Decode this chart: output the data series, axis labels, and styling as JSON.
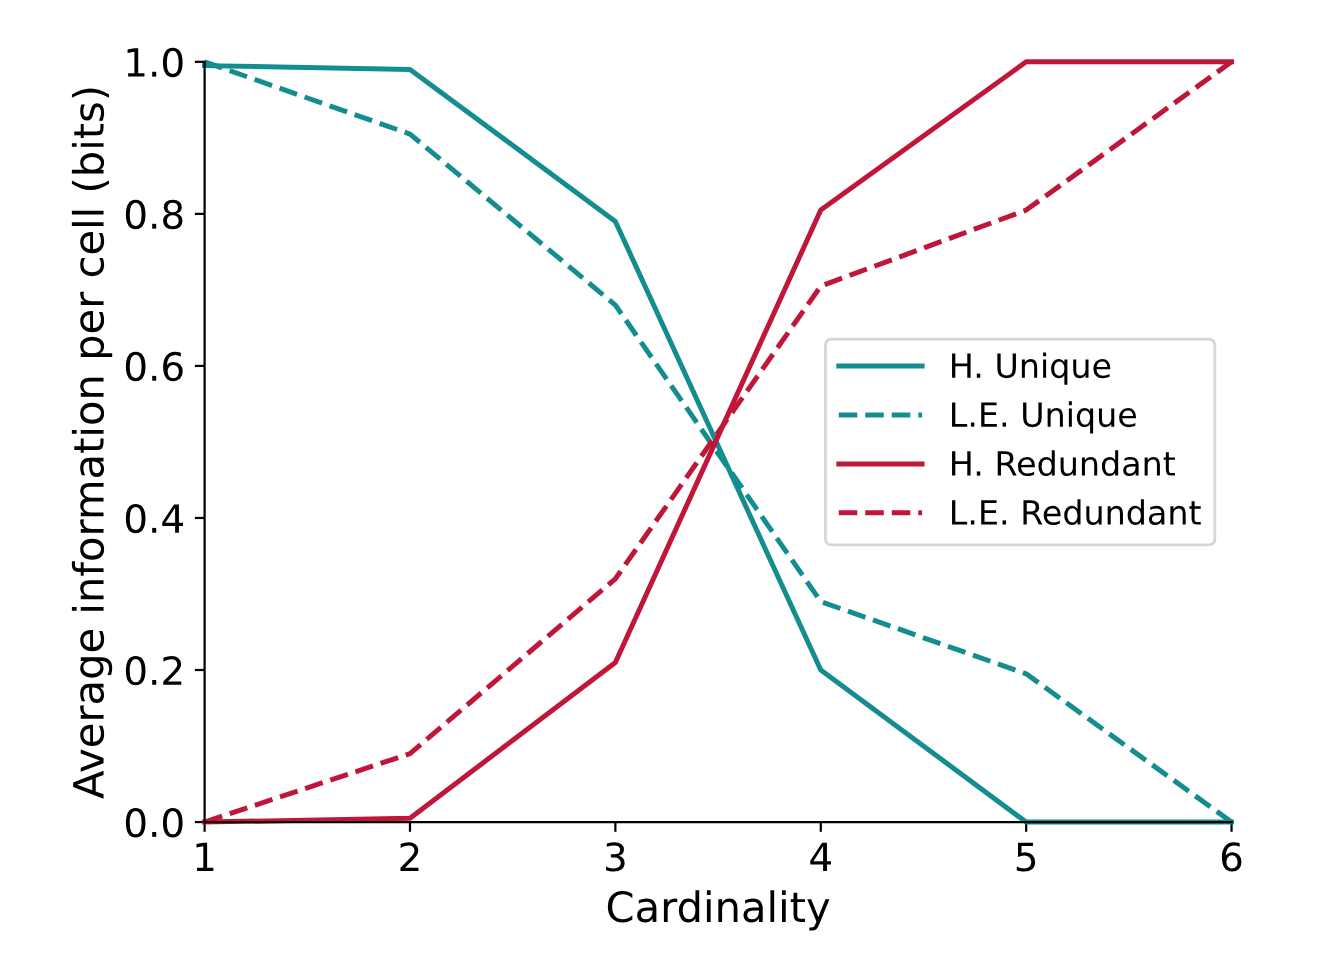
{
  "chart_data": {
    "type": "line",
    "xlabel": "Cardinality",
    "ylabel": "Average information per cell (bits)",
    "x": [
      1,
      2,
      3,
      4,
      5,
      6
    ],
    "series": [
      {
        "name": "H. Unique",
        "color": "#138d90",
        "line_style": "solid",
        "values": [
          0.995,
          0.99,
          0.79,
          0.2,
          0.0,
          0.0
        ]
      },
      {
        "name": "L.E. Unique",
        "color": "#138d90",
        "line_style": "dashed",
        "values": [
          1.0,
          0.905,
          0.68,
          0.29,
          0.195,
          0.0
        ]
      },
      {
        "name": "H. Redundant",
        "color": "#c0163a",
        "line_style": "solid",
        "values": [
          0.0,
          0.005,
          0.21,
          0.805,
          1.0,
          1.0
        ]
      },
      {
        "name": "L.E. Redundant",
        "color": "#c0163a",
        "line_style": "dashed",
        "values": [
          0.0,
          0.09,
          0.32,
          0.705,
          0.805,
          1.0
        ]
      }
    ],
    "xlim": [
      1,
      6
    ],
    "ylim": [
      0.0,
      1.0
    ],
    "xticks": [
      1,
      2,
      3,
      4,
      5,
      6
    ],
    "yticks": [
      {
        "value": 0,
        "label": "0.0"
      },
      0.2,
      0.4,
      0.6,
      0.8,
      {
        "value": 1,
        "label": "1.0"
      }
    ],
    "grid": false,
    "legend": "right",
    "marker": "none"
  }
}
